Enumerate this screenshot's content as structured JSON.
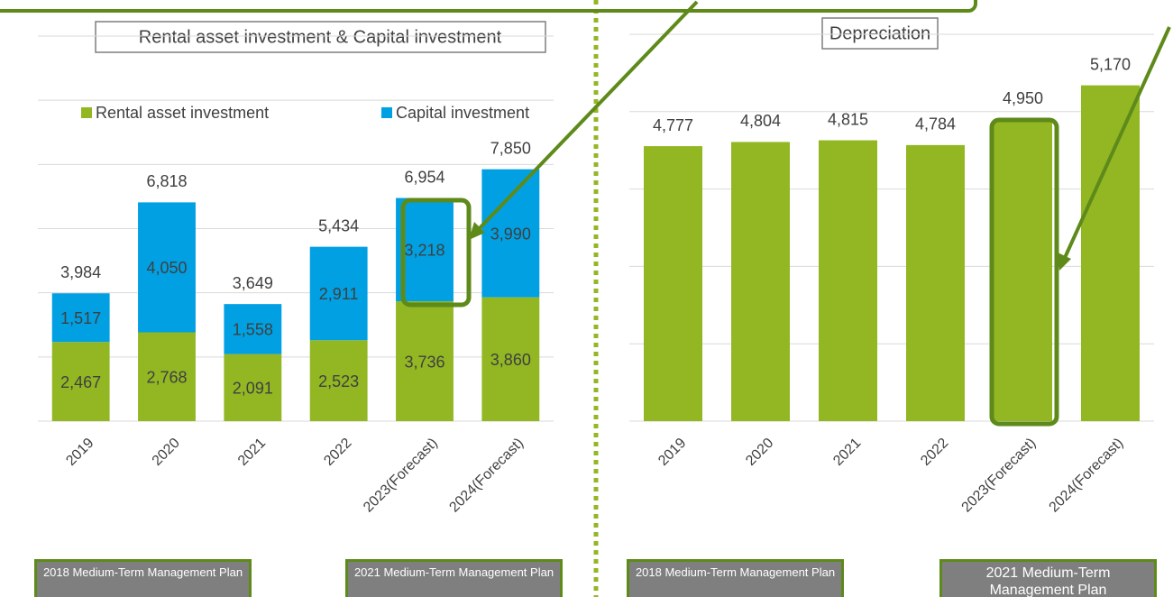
{
  "chart_data": [
    {
      "type": "stacked_bar",
      "title": "Rental asset investment & Capital investment",
      "categories": [
        "2019",
        "2020",
        "2021",
        "2022",
        "2023(Forecast)",
        "2024(Forecast)"
      ],
      "series": [
        {
          "name": "Rental asset investment",
          "color": "#92b723",
          "values": [
            2467,
            2768,
            2091,
            2523,
            3736,
            3860
          ],
          "value_labels": [
            "2,467",
            "2,768",
            "2,091",
            "2,523",
            "3,736",
            "3,860"
          ]
        },
        {
          "name": "Capital investment",
          "color": "#00a0e2",
          "values": [
            1517,
            4050,
            1558,
            2911,
            3218,
            3990
          ],
          "value_labels": [
            "1,517",
            "4,050",
            "1,558",
            "2,911",
            "3,218",
            "3,990"
          ]
        }
      ],
      "totals": [
        3984,
        6818,
        3649,
        5434,
        6954,
        7850
      ],
      "total_labels": [
        "3,984",
        "6,818",
        "3,649",
        "5,434",
        "6,954",
        "7,850"
      ],
      "ylim": [
        0,
        12000
      ],
      "yticks": [
        0,
        2000,
        4000,
        6000,
        8000,
        10000,
        12000
      ],
      "grid": true,
      "legend": "top"
    },
    {
      "type": "bar",
      "title": "Depreciation",
      "categories": [
        "2019",
        "2020",
        "2021",
        "2022",
        "2023(Forecast)",
        "2024(Forecast)"
      ],
      "values": [
        4777,
        4804,
        4815,
        4784,
        4950,
        5170
      ],
      "value_labels": [
        "4,777",
        "4,804",
        "4,815",
        "4,784",
        "4,950",
        "5,170"
      ],
      "color": "#92b723",
      "ylim": [
        3000,
        5500
      ],
      "yticks": [
        3000,
        3500,
        4000,
        4500,
        5000,
        5500
      ],
      "grid": true
    }
  ],
  "footer_labels": [
    "2018 Medium-Term Management Plan",
    "2021 Medium-Term Management Plan",
    "2018 Medium-Term Management Plan",
    "2021 Medium-Term Management Plan"
  ]
}
